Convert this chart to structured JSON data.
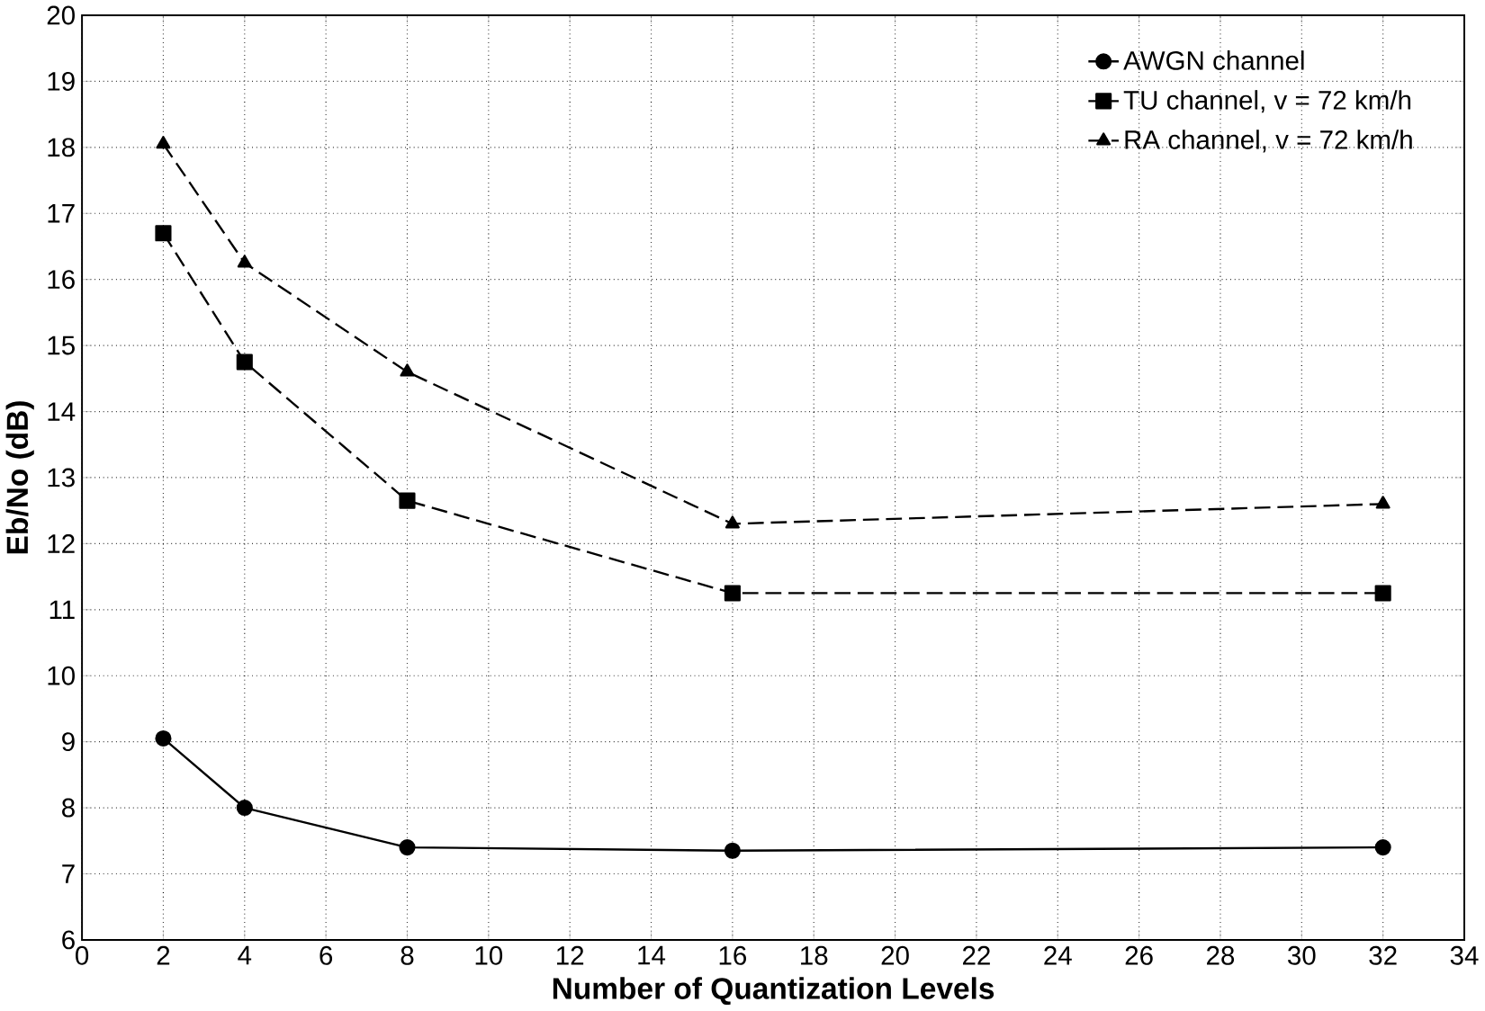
{
  "chart_data": {
    "type": "line",
    "xlabel": "Number of Quantization Levels",
    "ylabel": "Eb/No (dB)",
    "x": [
      2,
      4,
      8,
      16,
      32
    ],
    "series": [
      {
        "name": "AWGN channel",
        "color": "#000000",
        "marker": "circle",
        "line_style": "solid",
        "values": [
          9.05,
          8.0,
          7.4,
          7.35,
          7.4
        ]
      },
      {
        "name": "TU channel, v = 72 km/h",
        "color": "#000000",
        "marker": "square",
        "line_style": "dashed",
        "values": [
          16.7,
          14.75,
          12.65,
          11.25,
          11.25
        ]
      },
      {
        "name": "RA channel, v = 72 km/h",
        "color": "#000000",
        "marker": "triangle",
        "line_style": "dashed",
        "values": [
          18.05,
          16.25,
          14.6,
          12.3,
          12.6
        ]
      }
    ],
    "xlim": [
      0,
      34
    ],
    "xticks": [
      0,
      2,
      4,
      6,
      8,
      10,
      12,
      14,
      16,
      18,
      20,
      22,
      24,
      26,
      28,
      30,
      32,
      34
    ],
    "ylim": [
      6,
      20
    ],
    "yticks": [
      6,
      7,
      8,
      9,
      10,
      11,
      12,
      13,
      14,
      15,
      16,
      17,
      18,
      19,
      20
    ],
    "grid": true,
    "legend": "top right"
  }
}
